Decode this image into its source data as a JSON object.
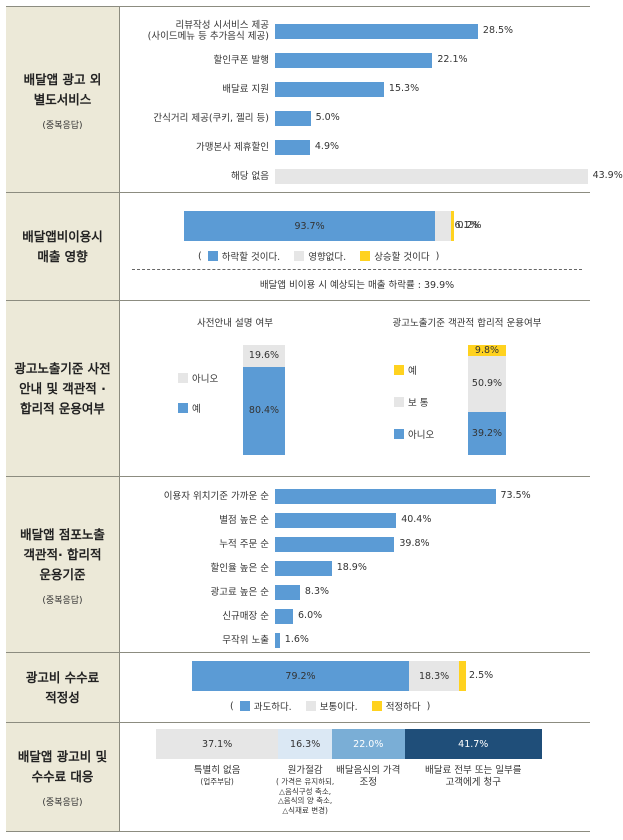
{
  "colors": {
    "blue": "#5b9bd5",
    "gray": "#d9d9d9",
    "lightgray": "#e6e6e6",
    "yellow": "#ffd21f",
    "darkblue": "#1f4e79",
    "midblue": "#7aaed6",
    "paleblue": "#dbe8f4"
  },
  "sections": {
    "s1": {
      "title": [
        "배달앱 광고 외",
        "별도서비스"
      ],
      "sub": "(중복응답)"
    },
    "s2": {
      "title": [
        "배달앱비이용시",
        "매출 영향"
      ]
    },
    "s3": {
      "title": [
        "광고노출기준 사전",
        "안내 및 객관적 ·",
        "합리적 운용여부"
      ]
    },
    "s4": {
      "title": [
        "배달앱 점포노출",
        "객관적· 합리적",
        "운용기준"
      ],
      "sub": "(중복응답)"
    },
    "s5": {
      "title": [
        "광고비 수수료",
        "적정성"
      ]
    },
    "s6": {
      "title": [
        "배달앱 광고비 및",
        "수수료 대응"
      ],
      "sub": "(중복응답)"
    }
  },
  "chart_data": [
    {
      "type": "bar",
      "categories": [
        [
          "리뷰작성 시서비스 제공",
          "(사이드메뉴 등 추가음식 제공)"
        ],
        [
          "할인쿠폰 발행"
        ],
        [
          "배달료 지원"
        ],
        [
          "간식거리 제공(쿠키, 젤리 등)"
        ],
        [
          "가맹본사 제휴할인"
        ],
        [
          "해당 없음"
        ]
      ],
      "values": [
        28.5,
        22.1,
        15.3,
        5.0,
        4.9,
        43.9
      ],
      "labels": [
        "28.5%",
        "22.1%",
        "15.3%",
        "5.0%",
        "4.9%",
        "43.9%"
      ],
      "xlim": [
        0,
        50
      ]
    },
    {
      "type": "bar",
      "stacked": true,
      "series": [
        {
          "name": "하락할 것이다.",
          "value": 93.7,
          "label": "93.7%"
        },
        {
          "name": "영향없다.",
          "value": 6.1,
          "label": "6.1%"
        },
        {
          "name": "상승할 것이다",
          "value": 0.2,
          "label": "0.2%"
        }
      ],
      "legend_open": "(",
      "legend_close": ")",
      "annotation": "배달앱 비이용 시 예상되는 매출 하락률 : 39.9%"
    },
    {
      "type": "bar",
      "stacked": true,
      "title": "사전안내 설명 여부",
      "series": [
        {
          "name": "예",
          "value": 80.4,
          "label": "80.4%"
        },
        {
          "name": "아니오",
          "value": 19.6,
          "label": "19.6%"
        }
      ]
    },
    {
      "type": "bar",
      "stacked": true,
      "title": "광고노출기준 객관적 합리적 운용여부",
      "series": [
        {
          "name": "아니오",
          "value": 39.2,
          "label": "39.2%"
        },
        {
          "name": "보 통",
          "value": 50.9,
          "label": "50.9%"
        },
        {
          "name": "예",
          "value": 9.8,
          "label": "9.8%"
        }
      ]
    },
    {
      "type": "bar",
      "categories": [
        "이용자 위치기준 가까운 순",
        "별점 높은 순",
        "누적 주문 순",
        "할인율 높은 순",
        "광고료 높은 순",
        "신규매장 순",
        "무작위 노출"
      ],
      "values": [
        73.5,
        40.4,
        39.8,
        18.9,
        8.3,
        6.0,
        1.6
      ],
      "labels": [
        "73.5%",
        "40.4%",
        "39.8%",
        "18.9%",
        "8.3%",
        "6.0%",
        "1.6%"
      ],
      "xlim": [
        0,
        80
      ]
    },
    {
      "type": "bar",
      "stacked": true,
      "series": [
        {
          "name": "과도하다.",
          "value": 79.2,
          "label": "79.2%"
        },
        {
          "name": "보통이다.",
          "value": 18.3,
          "label": "18.3%"
        },
        {
          "name": "적정하다",
          "value": 2.5,
          "label": "2.5%"
        }
      ],
      "legend_open": "(",
      "legend_close": ")"
    },
    {
      "type": "bar",
      "stacked": true,
      "series": [
        {
          "name": "특별히 없음",
          "note": "(업주부담)",
          "value": 37.1,
          "label": "37.1%"
        },
        {
          "name": "원가절감",
          "note": "( 가격은 유지하되, △음식구성 축소, △음식의 양 축소, △식재료 변경)",
          "note_lines": [
            "( 가격은 유지하되,",
            "△음식구성 축소,",
            "△음식의 양 축소,",
            "△식재료 변경)"
          ],
          "value": 16.3,
          "label": "16.3%"
        },
        {
          "name": "배달음식의 가격 조정",
          "name_lines": [
            "배달음식의 가격",
            "조정"
          ],
          "value": 22.0,
          "label": "22.0%"
        },
        {
          "name": "배달료 전부 또는 일부를 고객에게 청구",
          "name_lines": [
            "배달료 전부 또는 일부를",
            "고객에게 청구"
          ],
          "value": 41.7,
          "label": "41.7%"
        }
      ]
    }
  ]
}
